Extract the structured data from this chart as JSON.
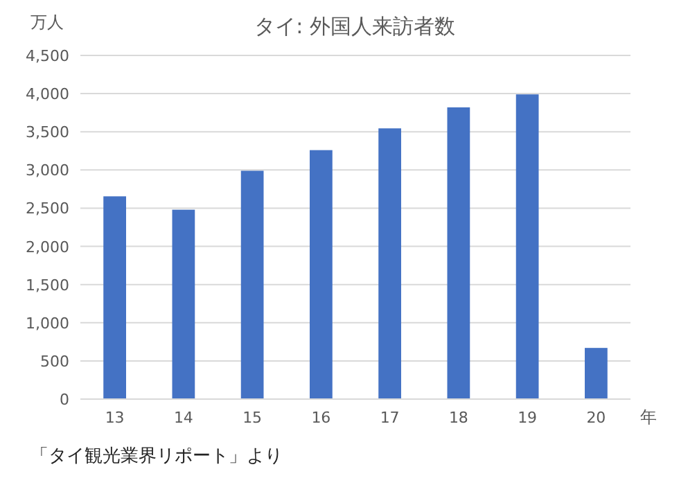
{
  "chart_data": {
    "type": "bar",
    "title": "タイ: 外国人来訪者数",
    "ylabel": "万人",
    "xlabel": "年",
    "categories": [
      "13",
      "14",
      "15",
      "16",
      "17",
      "18",
      "19",
      "20"
    ],
    "values": [
      2655,
      2480,
      2990,
      3260,
      3545,
      3820,
      3990,
      670
    ],
    "color": "#4472c4",
    "ylim": [
      0,
      4500
    ],
    "yticks": [
      0,
      500,
      {
        "value": 1000,
        "label": "1,000"
      },
      {
        "value": 1500,
        "label": "1,500"
      },
      {
        "value": 2000,
        "label": "2,000"
      },
      {
        "value": 2500,
        "label": "2,500"
      },
      {
        "value": 3000,
        "label": "3,000"
      },
      {
        "value": 3500,
        "label": "3,500"
      },
      {
        "value": 4000,
        "label": "4,000"
      },
      {
        "value": 4500,
        "label": "4,500"
      }
    ],
    "grid": "y",
    "annotations": [
      "「タイ観光業界リポート」より"
    ]
  }
}
